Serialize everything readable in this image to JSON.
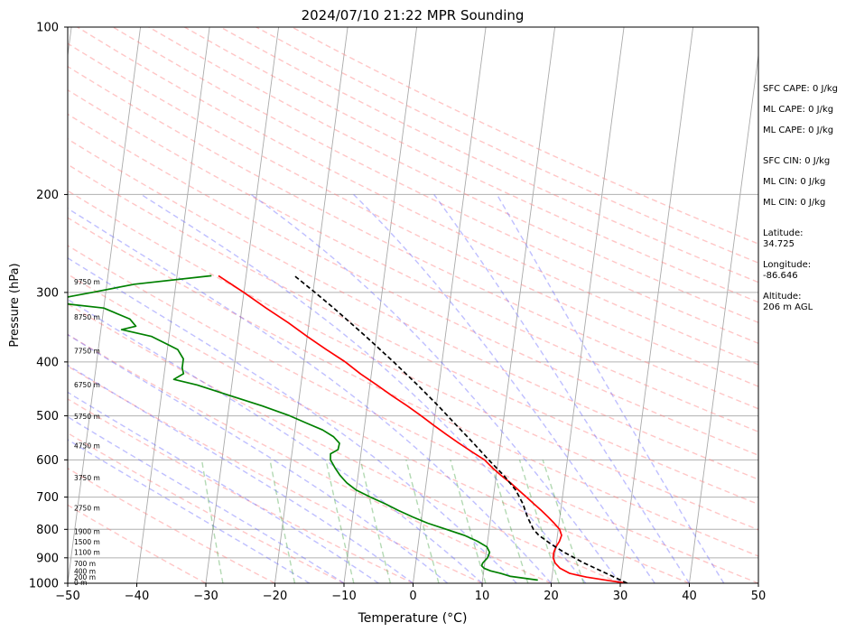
{
  "chart_data": {
    "type": "skew-t log-p sounding",
    "title": "2024/07/10 21:22 MPR Sounding",
    "xlabel": "Temperature (°C)",
    "ylabel": "Pressure (hPa)",
    "xlim": [
      -50,
      50
    ],
    "ylim": [
      1000,
      100
    ],
    "y_scale": "log",
    "grid": true,
    "x_ticks": [
      "−50",
      "−40",
      "−30",
      "−20",
      "−10",
      "0",
      "10",
      "20",
      "30",
      "40",
      "50"
    ],
    "y_ticks": [
      100,
      200,
      300,
      400,
      500,
      600,
      700,
      800,
      900,
      1000
    ],
    "series": [
      {
        "color": "#ff0000",
        "pressure": [
          1000,
          990,
          975,
          960,
          940,
          920,
          900,
          880,
          860,
          840,
          820,
          800,
          780,
          760,
          740,
          720,
          700,
          680,
          660,
          640,
          620,
          600,
          580,
          560,
          540,
          520,
          500,
          480,
          460,
          440,
          420,
          400,
          380,
          360,
          340,
          320,
          300,
          280
        ],
        "temperature": [
          31.0,
          28.5,
          25.0,
          22.5,
          21.0,
          20.2,
          19.8,
          19.8,
          20.0,
          20.4,
          20.6,
          20.2,
          19.3,
          18.3,
          17.2,
          16.0,
          14.8,
          13.5,
          12.2,
          10.7,
          9.3,
          8.0,
          6.0,
          4.0,
          2.0,
          0.0,
          -2.0,
          -4.2,
          -6.6,
          -9.0,
          -11.6,
          -14.0,
          -17.0,
          -20.0,
          -23.0,
          -26.5,
          -30.0,
          -34.0
        ]
      },
      {
        "color": "#008000",
        "pressure": [
          987,
          980,
          972,
          960,
          950,
          940,
          930,
          920,
          900,
          880,
          860,
          840,
          820,
          800,
          780,
          760,
          740,
          720,
          700,
          680,
          660,
          640,
          620,
          600,
          585,
          575,
          560,
          545,
          530,
          515,
          500,
          480,
          460,
          440,
          430,
          420,
          410,
          395,
          380,
          360,
          350,
          345,
          335,
          320,
          315,
          310,
          305,
          300,
          290,
          280
        ],
        "dewpoint": [
          18.0,
          16.2,
          14.0,
          12.5,
          11.0,
          10.0,
          9.6,
          9.7,
          10.3,
          10.5,
          10.0,
          8.5,
          6.5,
          3.8,
          1.0,
          -1.3,
          -3.5,
          -5.5,
          -7.8,
          -10.0,
          -11.5,
          -12.6,
          -13.5,
          -14.3,
          -14.4,
          -13.4,
          -13.3,
          -14.3,
          -16.0,
          -18.5,
          -21.0,
          -25.2,
          -30.0,
          -35.0,
          -38.5,
          -37.2,
          -37.5,
          -37.5,
          -38.5,
          -42.5,
          -47.0,
          -45.0,
          -46.0,
          -50.0,
          -55.0,
          -57.5,
          -55.0,
          -52.0,
          -46.0,
          -35.0
        ]
      },
      {
        "color": "#000000",
        "dashed": true,
        "pressure": [
          1000,
          960,
          920,
          880,
          850,
          820,
          800,
          760,
          720,
          680,
          640,
          600,
          560,
          520,
          480,
          440,
          400,
          360,
          320,
          300,
          280
        ],
        "temperature": [
          31.0,
          27.8,
          24.4,
          21.3,
          19.2,
          17.3,
          16.4,
          15.3,
          14.4,
          13.1,
          11.1,
          8.6,
          6.1,
          3.3,
          0.3,
          -3.1,
          -7.0,
          -11.5,
          -16.7,
          -19.7,
          -23.0
        ]
      }
    ],
    "height_labels": [
      {
        "label": "0 m",
        "pressure": 1000
      },
      {
        "label": "200 m",
        "pressure": 977
      },
      {
        "label": "400 m",
        "pressure": 955
      },
      {
        "label": "700 m",
        "pressure": 925
      },
      {
        "label": "1100 m",
        "pressure": 882
      },
      {
        "label": "1500 m",
        "pressure": 845
      },
      {
        "label": "1900 m",
        "pressure": 810
      },
      {
        "label": "2750 m",
        "pressure": 735
      },
      {
        "label": "3750 m",
        "pressure": 648
      },
      {
        "label": "4750 m",
        "pressure": 568
      },
      {
        "label": "5750 m",
        "pressure": 503
      },
      {
        "label": "6750 m",
        "pressure": 441
      },
      {
        "label": "7750 m",
        "pressure": 383
      },
      {
        "label": "8750 m",
        "pressure": 333
      },
      {
        "label": "9750 m",
        "pressure": 288
      }
    ]
  },
  "indices": {
    "sfc_cape": "SFC CAPE: 0 J/kg",
    "ml_cape_1": "ML CAPE: 0 J/kg",
    "ml_cape_2": "ML CAPE: 0 J/kg",
    "sfc_cin": "SFC CIN: 0 J/kg",
    "ml_cin_1": "ML CIN: 0 J/kg",
    "ml_cin_2": "ML CIN: 0 J/kg",
    "latitude": "Latitude:\n34.725",
    "longitude": "Longitude:\n-86.646",
    "altitude": "Altitude:\n206 m AGL"
  }
}
